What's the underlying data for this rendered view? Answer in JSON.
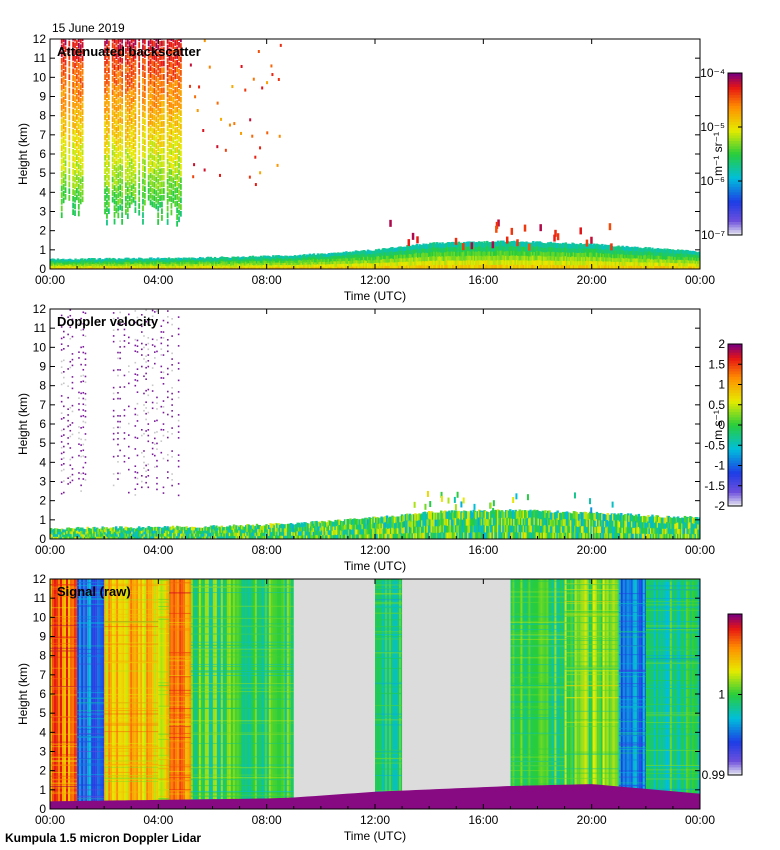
{
  "date": "15 June 2019",
  "footer": "Kumpula 1.5 micron Doppler Lidar",
  "chart_data": [
    {
      "type": "heatmap",
      "title": "Attenuated backscatter",
      "xlabel": "Time (UTC)",
      "ylabel": "Height (km)",
      "xlim": [
        0,
        24
      ],
      "ylim": [
        0,
        12
      ],
      "xticks": [
        "00:00",
        "04:00",
        "08:00",
        "12:00",
        "16:00",
        "20:00",
        "00:00"
      ],
      "yticks": [
        "0",
        "1",
        "2",
        "3",
        "4",
        "5",
        "6",
        "7",
        "8",
        "9",
        "10",
        "11",
        "12"
      ],
      "colorbar": {
        "scale": "log",
        "range": [
          1e-07,
          0.0001
        ],
        "unit": "m⁻¹ sr⁻¹",
        "ticks": [
          "10⁻⁷",
          "10⁻⁶",
          "10⁻⁵",
          "10⁻⁴"
        ],
        "tick_values": [
          1e-07,
          1e-06,
          1e-05,
          0.0001
        ]
      },
      "boundary_layer_top_km": [
        [
          0,
          0.5
        ],
        [
          6,
          0.6
        ],
        [
          9,
          0.7
        ],
        [
          12,
          1.0
        ],
        [
          14,
          1.35
        ],
        [
          17,
          1.45
        ],
        [
          20,
          1.3
        ],
        [
          24,
          0.9
        ]
      ],
      "virga_columns_hours": [
        [
          0.4,
          1.3
        ],
        [
          2.0,
          4.8
        ]
      ]
    },
    {
      "type": "heatmap",
      "title": "Doppler velocity",
      "xlabel": "Time (UTC)",
      "ylabel": "Height (km)",
      "xlim": [
        0,
        24
      ],
      "ylim": [
        0,
        12
      ],
      "xticks": [
        "00:00",
        "04:00",
        "08:00",
        "12:00",
        "16:00",
        "20:00",
        "00:00"
      ],
      "yticks": [
        "0",
        "1",
        "2",
        "3",
        "4",
        "5",
        "6",
        "7",
        "8",
        "9",
        "10",
        "11",
        "12"
      ],
      "colorbar": {
        "scale": "linear",
        "range": [
          -2,
          2
        ],
        "unit": "m s⁻¹",
        "ticks": [
          "-2",
          "-1.5",
          "-1",
          "-0.5",
          "0",
          "0.5",
          "1",
          "1.5",
          "2"
        ],
        "tick_values": [
          -2,
          -1.5,
          -1,
          -0.5,
          0,
          0.5,
          1,
          1.5,
          2
        ]
      },
      "boundary_layer_top_km": [
        [
          0,
          0.55
        ],
        [
          6,
          0.65
        ],
        [
          9,
          0.8
        ],
        [
          12,
          1.1
        ],
        [
          14,
          1.4
        ],
        [
          17,
          1.5
        ],
        [
          20,
          1.35
        ],
        [
          24,
          1.1
        ]
      ]
    },
    {
      "type": "heatmap",
      "title": "Signal (raw)",
      "xlabel": "Time (UTC)",
      "ylabel": "Height (km)",
      "xlim": [
        0,
        24
      ],
      "ylim": [
        0,
        12
      ],
      "xticks": [
        "00:00",
        "04:00",
        "08:00",
        "12:00",
        "16:00",
        "20:00",
        "00:00"
      ],
      "yticks": [
        "0",
        "1",
        "2",
        "3",
        "4",
        "5",
        "6",
        "7",
        "8",
        "9",
        "10",
        "11",
        "12"
      ],
      "colorbar": {
        "scale": "linear",
        "range": [
          0.99,
          1.01
        ],
        "ticks": [
          "0.99",
          "1"
        ],
        "tick_values": [
          0.99,
          1.0
        ]
      },
      "missing_periods_hours": [
        [
          9.0,
          12.0
        ],
        [
          13.0,
          17.0
        ]
      ],
      "background_bands": [
        {
          "x": [
            0,
            1.0
          ],
          "level": 0.82
        },
        {
          "x": [
            1.0,
            2.0
          ],
          "level": 0.25
        },
        {
          "x": [
            2.0,
            4.0
          ],
          "level": 0.72
        },
        {
          "x": [
            4.0,
            4.4
          ],
          "level": 0.66
        },
        {
          "x": [
            4.4,
            5.2
          ],
          "level": 0.8
        },
        {
          "x": [
            5.2,
            9.0
          ],
          "level": 0.5
        },
        {
          "x": [
            12.0,
            13.0
          ],
          "level": 0.45
        },
        {
          "x": [
            17.0,
            19.0
          ],
          "level": 0.48
        },
        {
          "x": [
            19.0,
            21.0
          ],
          "level": 0.55
        },
        {
          "x": [
            21.0,
            22.0
          ],
          "level": 0.3
        },
        {
          "x": [
            22.0,
            24.0
          ],
          "level": 0.45
        }
      ],
      "boundary_layer_top_km": [
        [
          0,
          0.4
        ],
        [
          8,
          0.55
        ],
        [
          9,
          0.6
        ],
        [
          12,
          0.9
        ],
        [
          17,
          1.2
        ],
        [
          20,
          1.3
        ],
        [
          24,
          0.8
        ]
      ]
    }
  ]
}
